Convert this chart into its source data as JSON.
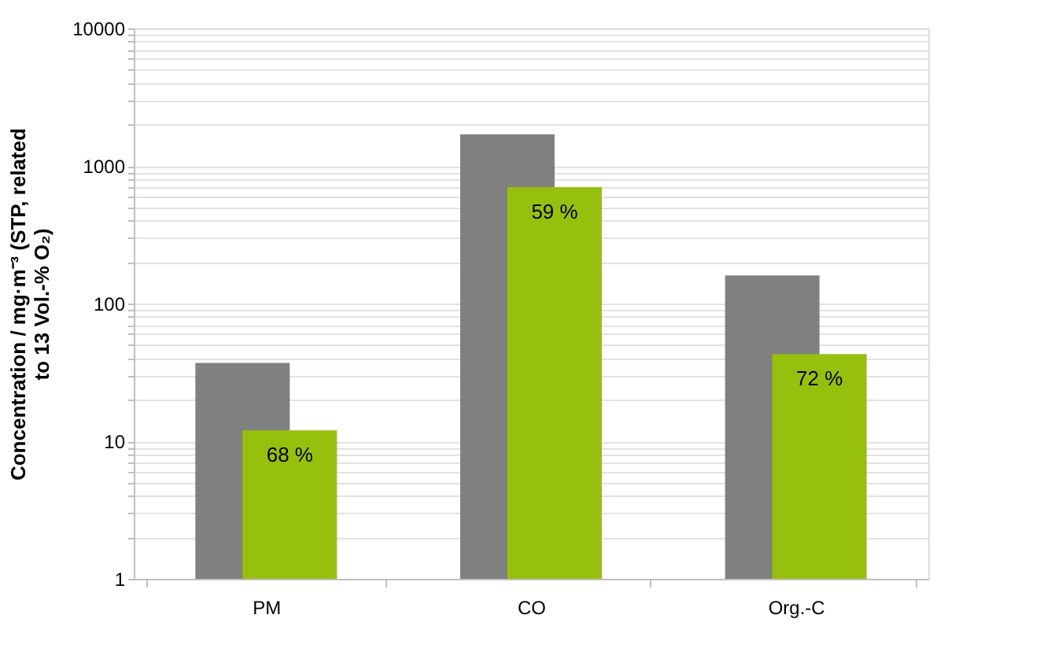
{
  "chart_data": {
    "type": "bar",
    "ylabel": "Concentration / mg·m⁻³ (STP, related to 13 Vol.-% O₂)",
    "categories": [
      "PM",
      "CO",
      "Org.-C"
    ],
    "series": [
      {
        "color": "#808080",
        "values": [
          37,
          1700,
          160
        ]
      },
      {
        "color": "#97c00e",
        "values": [
          12,
          700,
          43
        ]
      }
    ],
    "annotations": [
      {
        "text": "68 %",
        "x": "PM",
        "y": 12
      },
      {
        "text": "59 %",
        "x": "CO",
        "y": 700
      },
      {
        "text": "72 %",
        "x": "Org.-C",
        "y": 43
      }
    ],
    "log": "y",
    "ylim": [
      1,
      10000
    ],
    "yticks": [
      1,
      {
        "value": 2,
        "label": null
      },
      {
        "value": 3,
        "label": null
      },
      {
        "value": 4,
        "label": null
      },
      {
        "value": 5,
        "label": null
      },
      {
        "value": 6,
        "label": null
      },
      {
        "value": 7,
        "label": null
      },
      {
        "value": 8,
        "label": null
      },
      {
        "value": 9,
        "label": null
      },
      10,
      {
        "value": 20,
        "label": null
      },
      {
        "value": 30,
        "label": null
      },
      {
        "value": 40,
        "label": null
      },
      {
        "value": 50,
        "label": null
      },
      {
        "value": 60,
        "label": null
      },
      {
        "value": 70,
        "label": null
      },
      {
        "value": 80,
        "label": null
      },
      {
        "value": 90,
        "label": null
      },
      100,
      {
        "value": 200,
        "label": null
      },
      {
        "value": 300,
        "label": null
      },
      {
        "value": 400,
        "label": null
      },
      {
        "value": 500,
        "label": null
      },
      {
        "value": 600,
        "label": null
      },
      {
        "value": 700,
        "label": null
      },
      {
        "value": 800,
        "label": null
      },
      {
        "value": 900,
        "label": null
      },
      1000,
      {
        "value": 2000,
        "label": null
      },
      {
        "value": 3000,
        "label": null
      },
      {
        "value": 4000,
        "label": null
      },
      {
        "value": 5000,
        "label": null
      },
      {
        "value": 6000,
        "label": null
      },
      {
        "value": 7000,
        "label": null
      },
      {
        "value": 8000,
        "label": null
      },
      {
        "value": 9000,
        "label": null
      },
      10000
    ],
    "grid": "y"
  }
}
